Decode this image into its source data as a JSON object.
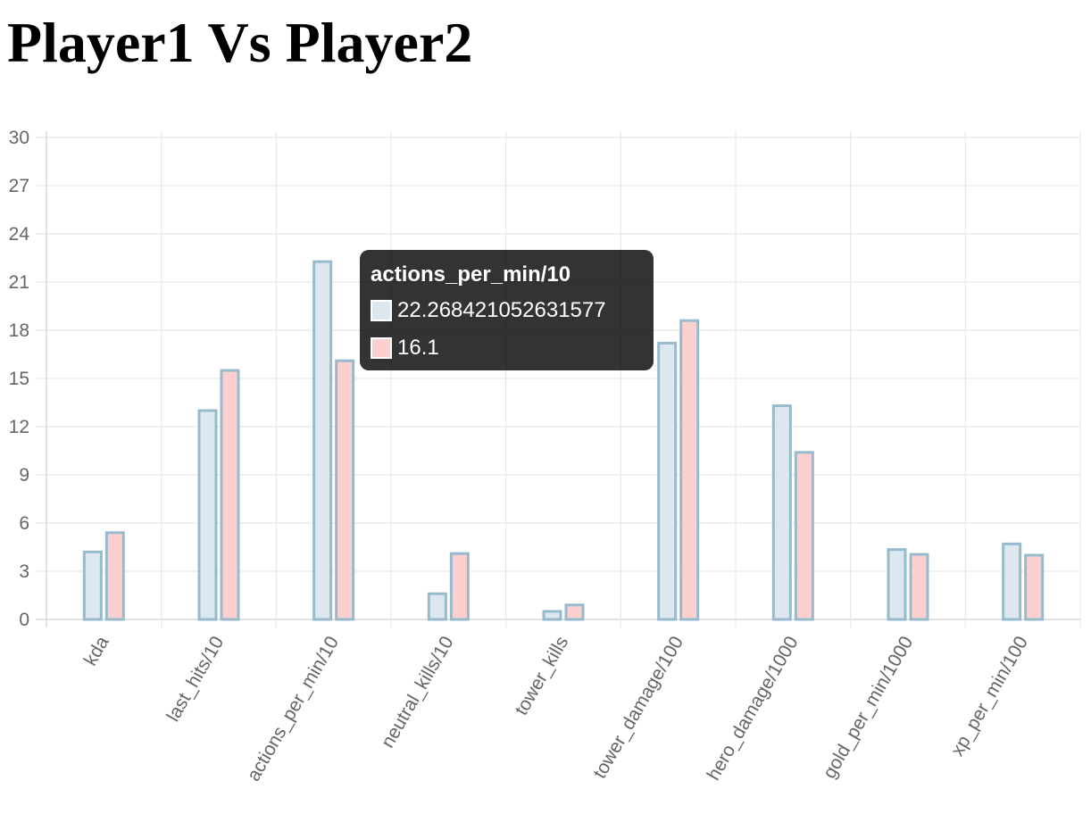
{
  "page": {
    "title": "Player1 Vs Player2"
  },
  "tooltip": {
    "title": "actions_per_min/10",
    "rows": [
      {
        "value": "22.268421052631577",
        "color": "#dde7f0"
      },
      {
        "value": "16.1",
        "color": "#fdd0d0"
      }
    ]
  },
  "chart_data": {
    "type": "bar",
    "title": "",
    "xlabel": "",
    "ylabel": "",
    "categories": [
      "kda",
      "last_hits/10",
      "actions_per_min/10",
      "neutral_kills/10",
      "tower_kills",
      "tower_damage/100",
      "hero_damage/1000",
      "gold_per_min/1000",
      "xp_per_min/100"
    ],
    "series": [
      {
        "values": [
          4.2,
          13.0,
          22.268421052631577,
          1.6,
          0.5,
          17.2,
          13.3,
          4.35,
          4.7
        ],
        "fill": "#dde7f0",
        "stroke": "#97bbcd"
      },
      {
        "values": [
          5.4,
          15.5,
          16.1,
          4.1,
          0.9,
          18.6,
          10.4,
          4.05,
          4.0
        ],
        "fill": "#fdd0d0",
        "stroke": "#97bbcd"
      }
    ],
    "ylim": [
      0,
      30
    ],
    "yticks": [
      0,
      3,
      6,
      9,
      12,
      15,
      18,
      21,
      24,
      27,
      30
    ],
    "ytick_labels": [
      "0",
      "3",
      "6",
      "9",
      "12",
      "15",
      "18",
      "21",
      "24",
      "27",
      "30"
    ],
    "grid": true,
    "legend": "none"
  }
}
